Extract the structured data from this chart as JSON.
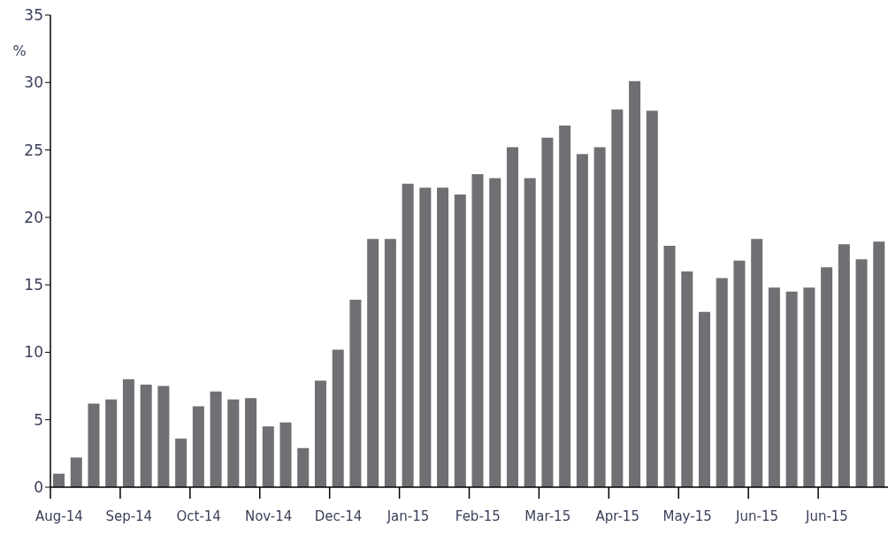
{
  "chart_data": {
    "type": "bar",
    "ylabel": "%",
    "color": "#6f7073",
    "categories": [
      "Aug-14",
      null,
      null,
      null,
      "Sep-14",
      null,
      null,
      null,
      "Oct-14",
      null,
      null,
      null,
      "Nov-14",
      null,
      null,
      null,
      "Dec-14",
      null,
      null,
      null,
      "Jan-15",
      null,
      null,
      null,
      "Feb-15",
      null,
      null,
      null,
      "Mar-15",
      null,
      null,
      null,
      "Apr-15",
      null,
      null,
      null,
      "May-15",
      null,
      null,
      null,
      "Jun-15",
      null,
      null,
      null,
      "Jun-15",
      null,
      null,
      null
    ],
    "values": [
      1.0,
      2.2,
      6.2,
      6.5,
      8.0,
      7.6,
      7.5,
      3.6,
      6.0,
      7.1,
      6.5,
      6.6,
      4.5,
      4.8,
      2.9,
      7.9,
      10.2,
      13.9,
      18.4,
      18.4,
      22.5,
      22.2,
      22.2,
      21.7,
      23.2,
      22.9,
      25.2,
      22.9,
      25.9,
      26.8,
      24.7,
      25.2,
      28.0,
      30.1,
      27.9,
      17.9,
      16.0,
      13.0,
      15.5,
      16.8,
      18.4,
      14.8,
      14.5,
      14.8,
      16.3,
      18.0,
      16.9,
      18.2
    ],
    "ylim": [
      0,
      35
    ],
    "yticks": [
      0,
      5,
      10,
      15,
      20,
      25,
      30,
      35
    ],
    "grid": false,
    "legend": false
  }
}
